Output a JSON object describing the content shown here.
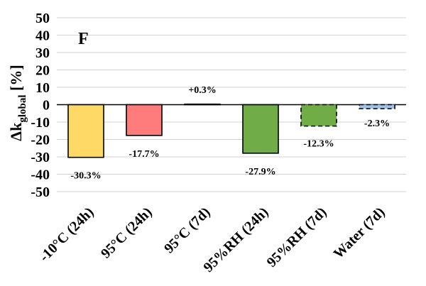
{
  "chart_data": {
    "type": "bar",
    "panel_label": "F",
    "ylabel": {
      "prefix": "Δk",
      "subscript": "global",
      "suffix": " [%]"
    },
    "ylim": [
      -50,
      50
    ],
    "yticks": [
      50,
      40,
      30,
      20,
      10,
      0,
      -10,
      -20,
      -30,
      -40,
      -50
    ],
    "grid": true,
    "categories": [
      "-10°C (24h)",
      "95°C (24h)",
      "95°C (7d)",
      "95%RH (24h)",
      "95%RH (7d)",
      "Water (7d)"
    ],
    "values": [
      -30.3,
      -17.7,
      0.3,
      -27.9,
      -12.3,
      -2.3
    ],
    "data_labels": [
      "-30.3%",
      "-17.7%",
      "+0.3%",
      "-27.9%",
      "-12.3%",
      "-2.3%"
    ],
    "colors": [
      "#ffd966",
      "#ff7c7c",
      "#f4b183",
      "#70ad47",
      "#70ad47",
      "#9dc3e6"
    ],
    "dashed_border": [
      false,
      false,
      false,
      false,
      true,
      true
    ]
  }
}
